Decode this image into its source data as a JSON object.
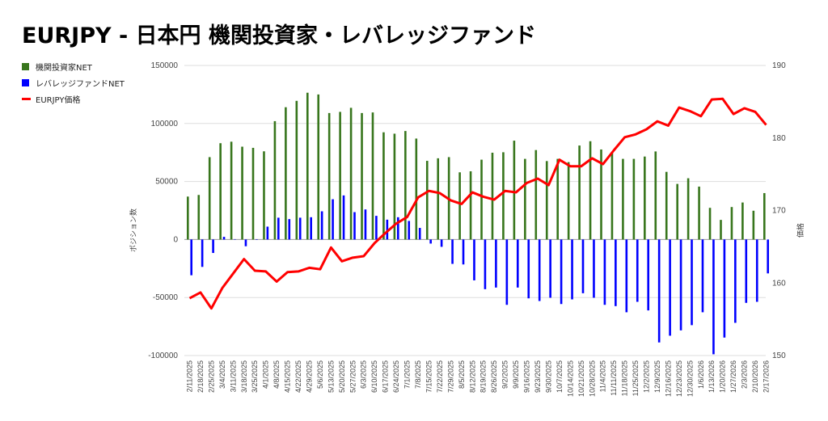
{
  "chart_data": {
    "type": "bar",
    "title": "EURJPY - 日本円 機関投資家・レバレッジファンド",
    "ylabel": "ポジション数",
    "y2label": "価格",
    "ylim": [
      -100000,
      150000
    ],
    "y2lim": [
      150,
      190
    ],
    "yticks": [
      "150000",
      "100000",
      "50000",
      "0",
      "-50000",
      "-100000"
    ],
    "y2ticks": [
      "190",
      "180",
      "170",
      "160",
      "150"
    ],
    "legend_position": "left",
    "grid": true,
    "categories": [
      "2/11/2025",
      "2/18/2025",
      "2/25/2025",
      "3/4/2025",
      "3/11/2025",
      "3/18/2025",
      "3/25/2025",
      "4/1/2025",
      "4/8/2025",
      "4/15/2025",
      "4/22/2025",
      "4/29/2025",
      "5/6/2025",
      "5/13/2025",
      "5/20/2025",
      "5/27/2025",
      "6/3/2025",
      "6/10/2025",
      "6/17/2025",
      "6/24/2025",
      "7/1/2025",
      "7/8/2025",
      "7/15/2025",
      "7/22/2025",
      "7/29/2025",
      "8/5/2025",
      "8/12/2025",
      "8/19/2025",
      "8/26/2025",
      "9/2/2025",
      "9/9/2025",
      "9/16/2025",
      "9/23/2025",
      "9/30/2025",
      "10/7/2025",
      "10/14/2025",
      "10/21/2025",
      "10/28/2025",
      "11/4/2025",
      "11/11/2025",
      "11/18/2025",
      "11/25/2025",
      "12/2/2025",
      "12/9/2025",
      "12/16/2025",
      "12/23/2025",
      "12/30/2025",
      "1/6/2026",
      "1/13/2026",
      "1/20/2026",
      "1/27/2026",
      "2/3/2026",
      "2/10/2026",
      "2/17/2026"
    ],
    "series": [
      {
        "name": "機関投資家NET",
        "type": "bar",
        "axis": "left",
        "color": "#38761d",
        "values": [
          37000,
          38400,
          71000,
          83000,
          84300,
          80000,
          79000,
          76000,
          102000,
          114000,
          119500,
          126500,
          125000,
          109000,
          110000,
          113500,
          109000,
          109500,
          92400,
          91200,
          93500,
          87000,
          67800,
          70000,
          71000,
          57900,
          58800,
          68800,
          74800,
          75200,
          85200,
          69500,
          77100,
          67600,
          69500,
          66700,
          81000,
          84700,
          77600,
          75200,
          69500,
          69500,
          71500,
          75900,
          58300,
          47900,
          52800,
          45600,
          27300,
          16900,
          28000,
          31900,
          24800,
          40000
        ]
      },
      {
        "name": "レバレッジファンドNET",
        "type": "bar",
        "axis": "left",
        "color": "#0000ff",
        "values": [
          -30800,
          -23600,
          -11600,
          2300,
          300,
          -5800,
          0,
          11100,
          18800,
          17600,
          18800,
          19200,
          24300,
          34700,
          38000,
          23600,
          25900,
          20400,
          17100,
          19200,
          16000,
          10000,
          -3500,
          -6300,
          -21000,
          -21500,
          -35200,
          -42800,
          -41400,
          -56300,
          -41400,
          -50700,
          -53000,
          -50200,
          -55600,
          -51600,
          -46300,
          -50200,
          -56300,
          -57400,
          -62700,
          -53700,
          -61100,
          -88700,
          -82900,
          -78300,
          -73800,
          -62700,
          -98900,
          -84500,
          -71800,
          -54600,
          -53700,
          -29200
        ]
      },
      {
        "name": "EURJPY価格",
        "type": "line",
        "axis": "right",
        "color": "#ff0000",
        "values": [
          157.9,
          158.7,
          156.5,
          159.3,
          161.3,
          163.3,
          161.7,
          161.6,
          160.2,
          161.5,
          161.6,
          162.1,
          161.9,
          164.9,
          163.0,
          163.5,
          163.7,
          165.5,
          166.9,
          168.2,
          169.1,
          171.8,
          172.7,
          172.4,
          171.4,
          170.9,
          172.5,
          171.9,
          171.5,
          172.7,
          172.5,
          173.8,
          174.4,
          173.5,
          177.0,
          176.1,
          176.1,
          177.2,
          176.4,
          178.3,
          180.1,
          180.5,
          181.2,
          182.3,
          181.7,
          184.2,
          183.7,
          183.0,
          185.3,
          185.4,
          183.3,
          184.1,
          183.6,
          181.8
        ]
      }
    ]
  }
}
